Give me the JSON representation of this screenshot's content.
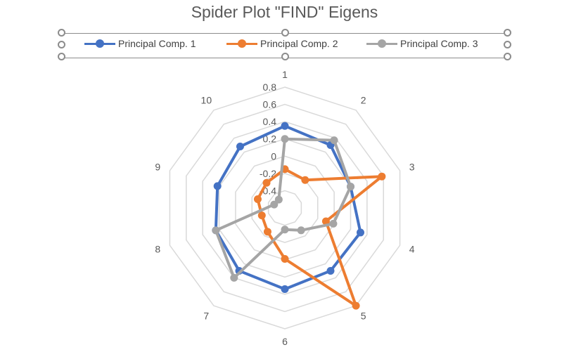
{
  "chart_data": {
    "type": "radar",
    "title": "Spider Plot \"FIND\" Eigens",
    "categories": [
      "1",
      "2",
      "3",
      "4",
      "5",
      "6",
      "7",
      "8",
      "9",
      "10"
    ],
    "radial_ticks": [
      "-0.4",
      "-0.2",
      "0",
      "0.2",
      "0.4",
      "0.6",
      "0.8"
    ],
    "rlim": [
      -0.6,
      0.8
    ],
    "grid": true,
    "legend": "top",
    "series": [
      {
        "name": "Principal Comp. 1",
        "color": "#4472c4",
        "values": [
          0.35,
          0.3,
          0.2,
          0.32,
          0.3,
          0.34,
          0.3,
          0.24,
          0.22,
          0.28
        ]
      },
      {
        "name": "Principal Comp. 2",
        "color": "#ed7d31",
        "values": [
          -0.15,
          -0.2,
          0.58,
          -0.1,
          0.8,
          -0.01,
          -0.26,
          -0.32,
          -0.27,
          -0.24
        ]
      },
      {
        "name": "Principal Comp. 3",
        "color": "#a5a5a5",
        "values": [
          0.2,
          0.37,
          0.2,
          -0.01,
          -0.28,
          -0.35,
          0.4,
          0.24,
          -0.47,
          -0.48
        ]
      }
    ]
  }
}
